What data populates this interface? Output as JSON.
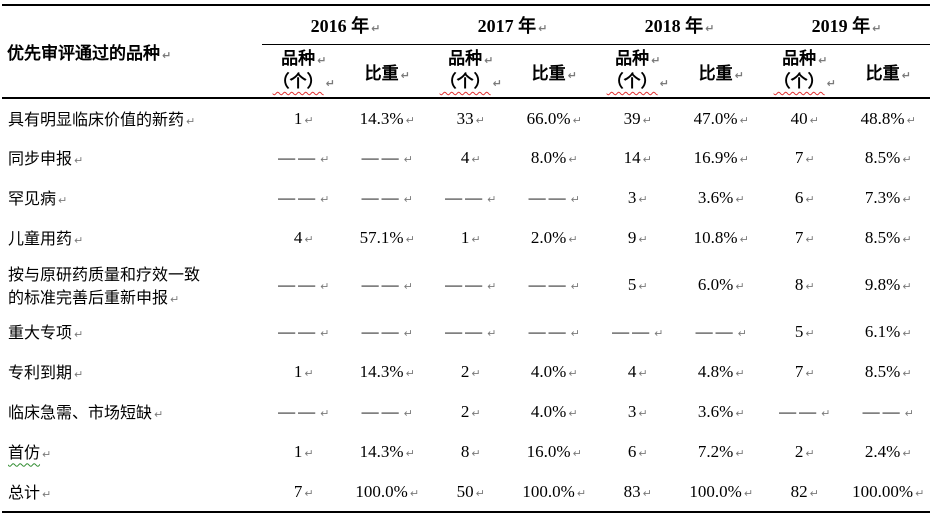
{
  "marks": {
    "paragraph": "↵"
  },
  "colors": {
    "text": "#000000",
    "line": "#000000",
    "paragraph_mark": "#7a7a7a",
    "spellcheck_underline": "#e03030",
    "grammar_underline": "#2e8b2e"
  },
  "table": {
    "corner_label": "优先审评通过的品种",
    "year_headers": [
      "2016 年",
      "2017 年",
      "2018 年",
      "2019 年"
    ],
    "subheader": {
      "count_line1": "品种",
      "count_line2": "（个）",
      "share": "比重"
    },
    "rows": [
      {
        "label": "具有明显临床价值的新药",
        "values": [
          "1",
          "14.3%",
          "33",
          "66.0%",
          "39",
          "47.0%",
          "40",
          "48.8%"
        ]
      },
      {
        "label": "同步申报",
        "values": [
          "——",
          "——",
          "4",
          "8.0%",
          "14",
          "16.9%",
          "7",
          "8.5%"
        ]
      },
      {
        "label": "罕见病",
        "values": [
          "——",
          "——",
          "——",
          "——",
          "3",
          "3.6%",
          "6",
          "7.3%"
        ]
      },
      {
        "label": "儿童用药",
        "values": [
          "4",
          "57.1%",
          "1",
          "2.0%",
          "9",
          "10.8%",
          "7",
          "8.5%"
        ]
      },
      {
        "label": "按与原研药质量和疗效一致\n的标准完善后重新申报",
        "values": [
          "——",
          "——",
          "——",
          "——",
          "5",
          "6.0%",
          "8",
          "9.8%"
        ]
      },
      {
        "label": "重大专项",
        "values": [
          "——",
          "——",
          "——",
          "——",
          "——",
          "——",
          "5",
          "6.1%"
        ]
      },
      {
        "label": "专利到期",
        "values": [
          "1",
          "14.3%",
          "2",
          "4.0%",
          "4",
          "4.8%",
          "7",
          "8.5%"
        ]
      },
      {
        "label": "临床急需、市场短缺",
        "values": [
          "——",
          "——",
          "2",
          "4.0%",
          "3",
          "3.6%",
          "——",
          "——"
        ]
      },
      {
        "label": "首仿",
        "squiggle": "green",
        "values": [
          "1",
          "14.3%",
          "8",
          "16.0%",
          "6",
          "7.2%",
          "2",
          "2.4%"
        ]
      },
      {
        "label": "总计",
        "values": [
          "7",
          "100.0%",
          "50",
          "100.0%",
          "83",
          "100.0%",
          "82",
          "100.00%"
        ]
      }
    ]
  }
}
